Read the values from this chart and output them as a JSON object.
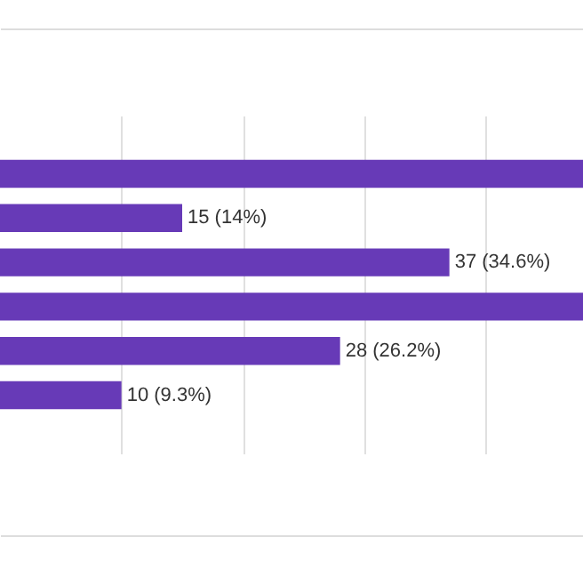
{
  "chart_data": {
    "type": "bar",
    "orientation": "horizontal",
    "categories": [
      null,
      null,
      null,
      null,
      null,
      null
    ],
    "values": [
      48,
      15,
      37,
      48,
      28,
      10
    ],
    "value_labels": [
      null,
      "15 (14%)",
      "37 (34.6%)",
      null,
      "28 (26.2%)",
      "10 (9.3%)"
    ],
    "color": "#673ab7",
    "xlim": [
      0,
      48
    ],
    "xticks": [
      {
        "value": 10,
        "label": null
      },
      {
        "value": 20,
        "label": null
      },
      {
        "value": 30,
        "label": null
      },
      {
        "value": 40,
        "label": null
      }
    ],
    "grid": "x"
  }
}
